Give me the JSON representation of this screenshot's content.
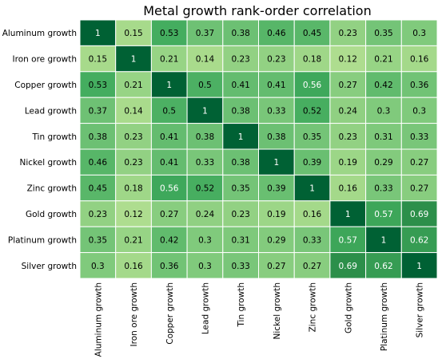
{
  "chart_data": {
    "type": "heatmap",
    "title": "Metal growth rank-order correlation",
    "xlabel": "",
    "ylabel": "",
    "colormap": "YlGn",
    "value_range": [
      0,
      1
    ],
    "grid": false,
    "legend": "none",
    "row_labels": [
      "Aluminum growth",
      "Iron ore growth",
      "Copper growth",
      "Lead growth",
      "Tin growth",
      "Nickel growth",
      "Zinc growth",
      "Gold growth",
      "Platinum growth",
      "Silver growth"
    ],
    "col_labels": [
      "Aluminum growth",
      "Iron ore growth",
      "Copper growth",
      "Lead growth",
      "Tin growth",
      "Nickel growth",
      "Zinc growth",
      "Gold growth",
      "Platinum growth",
      "Silver growth"
    ],
    "values": [
      [
        1,
        0.15,
        0.53,
        0.37,
        0.38,
        0.46,
        0.45,
        0.23,
        0.35,
        0.3
      ],
      [
        0.15,
        1,
        0.21,
        0.14,
        0.23,
        0.23,
        0.18,
        0.12,
        0.21,
        0.16
      ],
      [
        0.53,
        0.21,
        1,
        0.5,
        0.41,
        0.41,
        0.56,
        0.27,
        0.42,
        0.36
      ],
      [
        0.37,
        0.14,
        0.5,
        1,
        0.38,
        0.33,
        0.52,
        0.24,
        0.3,
        0.3
      ],
      [
        0.38,
        0.23,
        0.41,
        0.38,
        1,
        0.38,
        0.35,
        0.23,
        0.31,
        0.33
      ],
      [
        0.46,
        0.23,
        0.41,
        0.33,
        0.38,
        1,
        0.39,
        0.19,
        0.29,
        0.27
      ],
      [
        0.45,
        0.18,
        0.56,
        0.52,
        0.35,
        0.39,
        1,
        0.16,
        0.33,
        0.27
      ],
      [
        0.23,
        0.12,
        0.27,
        0.24,
        0.23,
        0.19,
        0.16,
        1,
        0.57,
        0.69
      ],
      [
        0.35,
        0.21,
        0.42,
        0.3,
        0.31,
        0.29,
        0.33,
        0.57,
        1,
        0.62
      ],
      [
        0.3,
        0.16,
        0.36,
        0.3,
        0.33,
        0.27,
        0.27,
        0.69,
        0.62,
        1
      ]
    ]
  }
}
